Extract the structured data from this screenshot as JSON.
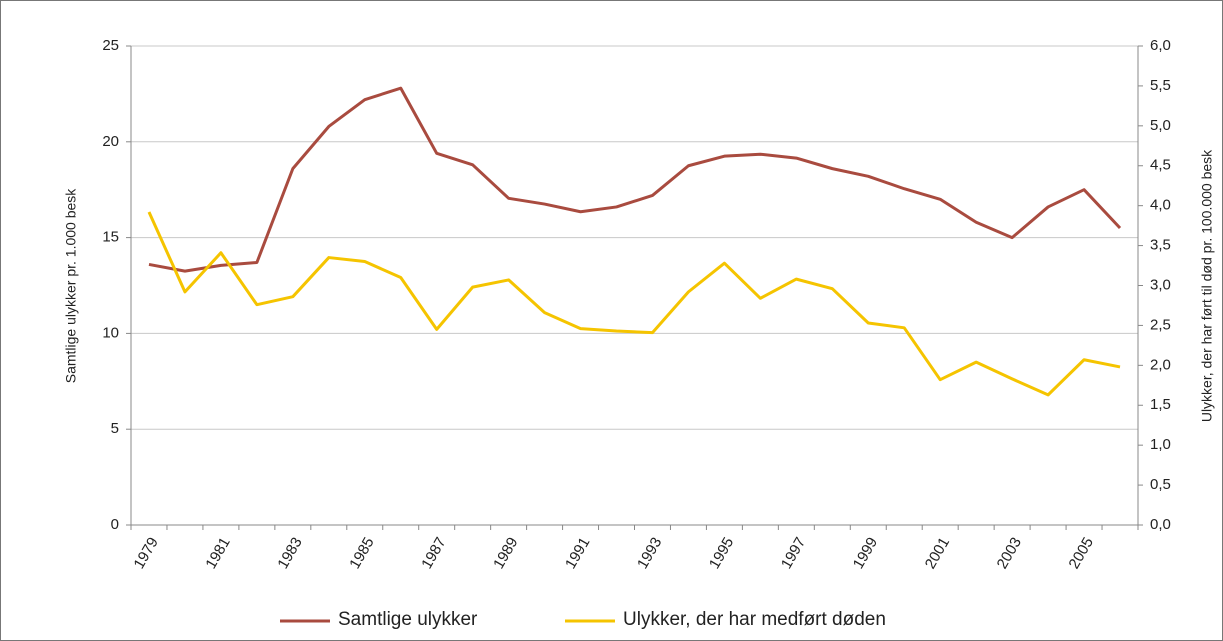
{
  "chart_data": {
    "type": "line",
    "y_label": "Samtlige ulykker pr. 1.000 besk",
    "y2_label": "Ulykker, der har ført til død pr. 100.000 besk",
    "categories": [
      "1979",
      null,
      "1981",
      null,
      "1983",
      null,
      "1985",
      null,
      "1987",
      null,
      "1989",
      null,
      "1991",
      null,
      "1993",
      null,
      "1995",
      null,
      "1997",
      null,
      "1999",
      null,
      "2001",
      null,
      "2003",
      null,
      "2005",
      null
    ],
    "series": [
      {
        "name": "Samtlige ulykker",
        "color": "#a94b3f",
        "values": [
          13.6,
          13.25,
          13.55,
          13.7,
          18.6,
          20.8,
          22.2,
          22.8,
          19.4,
          18.8,
          17.05,
          16.75,
          16.35,
          16.6,
          17.2,
          18.75,
          19.25,
          19.35,
          19.15,
          18.6,
          18.2,
          17.55,
          17.0,
          15.8,
          15.0,
          16.6,
          17.5,
          15.5
        ]
      },
      {
        "name": "Ulykker, der har medført døden",
        "color": "#f5c400",
        "axis": "y2",
        "values": [
          3.92,
          2.92,
          3.41,
          2.76,
          2.86,
          3.35,
          3.3,
          3.1,
          2.45,
          2.98,
          3.07,
          2.66,
          2.46,
          2.43,
          2.41,
          2.92,
          3.28,
          2.84,
          3.08,
          2.96,
          2.53,
          2.47,
          1.82,
          2.04,
          1.83,
          1.63,
          2.07,
          1.98
        ]
      }
    ],
    "ylim": [
      0,
      25
    ],
    "yticks": [
      0,
      5,
      10,
      15,
      20,
      25
    ],
    "y2lim": [
      0,
      6
    ],
    "y2ticks": [
      {
        "value": 0,
        "label": "0,0"
      },
      {
        "value": 0.5,
        "label": "0,5"
      },
      {
        "value": 1,
        "label": "1,0"
      },
      {
        "value": 1.5,
        "label": "1,5"
      },
      {
        "value": 2,
        "label": "2,0"
      },
      {
        "value": 2.5,
        "label": "2,5"
      },
      {
        "value": 3,
        "label": "3,0"
      },
      {
        "value": 3.5,
        "label": "3,5"
      },
      {
        "value": 4,
        "label": "4,0"
      },
      {
        "value": 4.5,
        "label": "4,5"
      },
      {
        "value": 5,
        "label": "5,0"
      },
      {
        "value": 5.5,
        "label": "5,5"
      },
      {
        "value": 6,
        "label": "6,0"
      }
    ],
    "grid": true,
    "legend": "bottom"
  }
}
